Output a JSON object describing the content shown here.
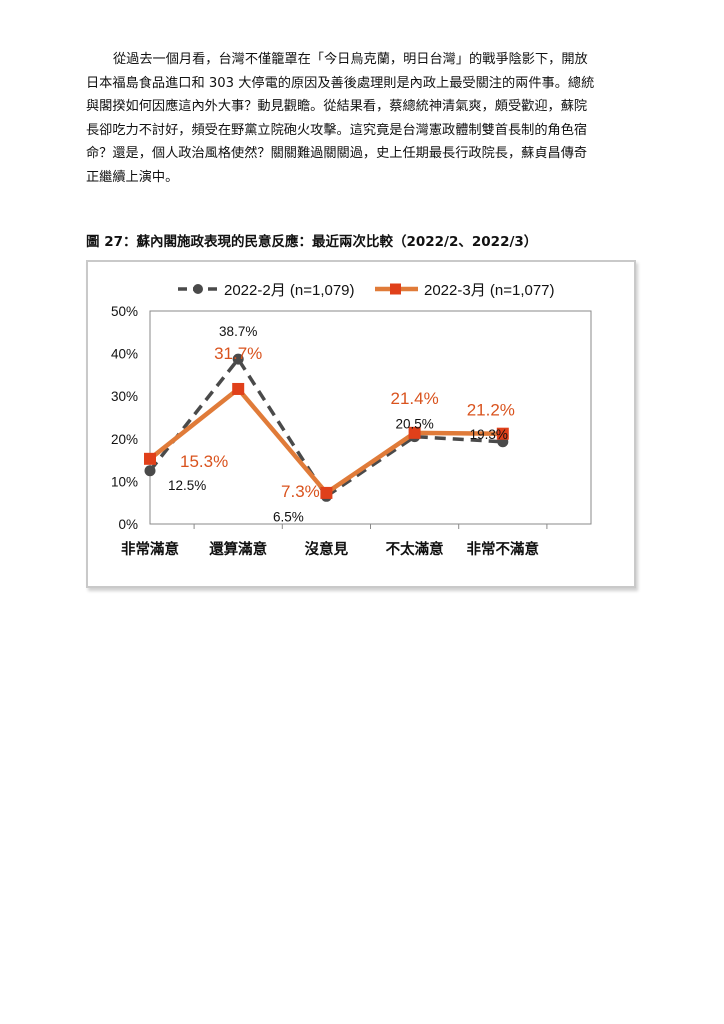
{
  "paragraph": {
    "lines": [
      "從過去一個月看，台灣不僅籠罩在「今日烏克蘭，明日台灣」的戰爭陰影下，開放",
      "日本福島食品進口和 303 大停電的原因及善後處理則是內政上最受關注的兩件事。總統",
      "與閣揆如何因應這內外大事？動見觀瞻。從結果看，蔡總統神清氣爽，頗受歡迎，蘇院",
      "長卻吃力不討好，頻受在野黨立院砲火攻擊。這究竟是台灣憲政體制雙首長制的角色宿",
      "命？還是，個人政治風格使然？關關難過關關過，史上任期最長行政院長，蘇貞昌傳奇",
      "正繼續上演中。"
    ]
  },
  "figure": {
    "caption": "圖 27：蘇內閣施政表現的民意反應：最近兩次比較（2022/2、2022/3）"
  },
  "chart_data": {
    "type": "line",
    "title": "",
    "xlabel": "",
    "ylabel": "",
    "categories": [
      "非常滿意",
      "還算滿意",
      "沒意見",
      "不太滿意",
      "非常不滿意"
    ],
    "ylim": [
      0,
      50
    ],
    "yticks": [
      "0%",
      "10%",
      "20%",
      "30%",
      "40%",
      "50%"
    ],
    "grid": false,
    "legend_position": "top",
    "series": [
      {
        "name": "2022-2月 (n=1,079)",
        "values": [
          12.5,
          38.7,
          6.5,
          20.5,
          19.3
        ],
        "labels": [
          "12.5%",
          "38.7%",
          "6.5%",
          "20.5%",
          "19.3%"
        ],
        "color": "#4a4a4a",
        "style": "dashed",
        "marker": "circle"
      },
      {
        "name": "2022-3月 (n=1,077)",
        "values": [
          15.3,
          31.7,
          7.3,
          21.4,
          21.2
        ],
        "labels": [
          "15.3%",
          "31.7%",
          "7.3%",
          "21.4%",
          "21.2%"
        ],
        "color": "#e07b39",
        "label_color": "#d9531e",
        "marker_color": "#e0401a",
        "style": "solid",
        "marker": "square"
      }
    ]
  }
}
